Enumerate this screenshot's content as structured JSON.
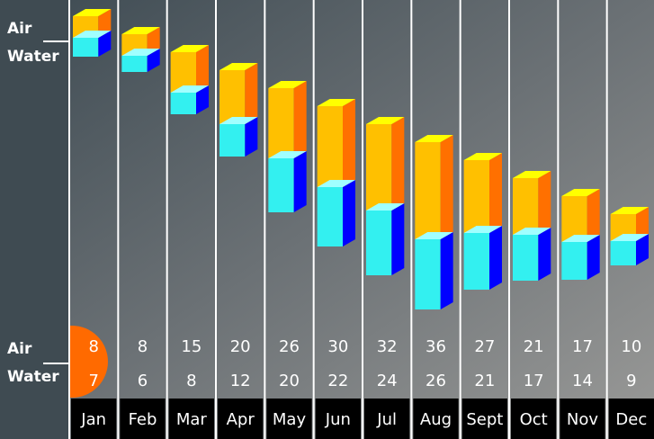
{
  "chart_data": {
    "type": "box3d",
    "categories": [
      "Jan",
      "Feb",
      "Mar",
      "Apr",
      "May",
      "Jun",
      "Jul",
      "Aug",
      "Sept",
      "Oct",
      "Nov",
      "Dec"
    ],
    "series": [
      {
        "name": "Air",
        "color": "#ffc000",
        "values": [
          8,
          8,
          15,
          20,
          26,
          30,
          32,
          36,
          27,
          21,
          17,
          10
        ]
      },
      {
        "name": "Water",
        "color": "#33f0f0",
        "values": [
          7,
          6,
          8,
          12,
          20,
          22,
          24,
          26,
          21,
          17,
          14,
          9
        ]
      }
    ]
  }
}
